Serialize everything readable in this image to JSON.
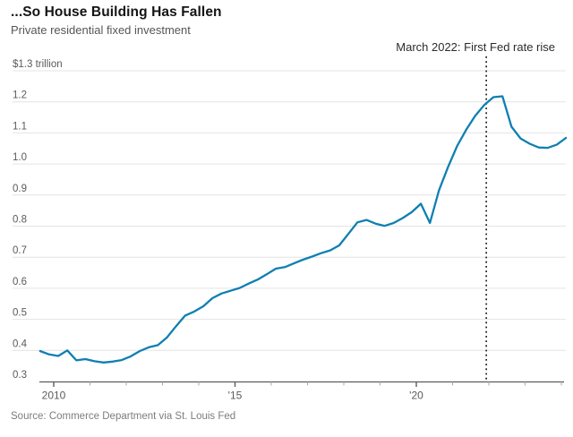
{
  "header": {
    "title": "...So House Building Has Fallen",
    "subtitle": "Private residential fixed investment"
  },
  "footer": {
    "source": "Source: Commerce Department via St. Louis Fed"
  },
  "chart_data": {
    "type": "line",
    "title": "...So House Building Has Fallen",
    "subtitle": "Private residential fixed investment",
    "unit": "trillion US dollars",
    "ylim": [
      0.3,
      1.3
    ],
    "xlim": [
      2009.5,
      2024.25
    ],
    "grid": "horizontal",
    "legend_position": "none",
    "y_ticks": [
      {
        "v": 1.3,
        "label": "$1.3 trillion"
      },
      {
        "v": 1.2,
        "label": "1.2"
      },
      {
        "v": 1.1,
        "label": "1.1"
      },
      {
        "v": 1.0,
        "label": "1.0"
      },
      {
        "v": 0.9,
        "label": "0.9"
      },
      {
        "v": 0.8,
        "label": "0.8"
      },
      {
        "v": 0.7,
        "label": "0.7"
      },
      {
        "v": 0.6,
        "label": "0.6"
      },
      {
        "v": 0.5,
        "label": "0.5"
      },
      {
        "v": 0.4,
        "label": "0.4"
      },
      {
        "v": 0.3,
        "label": "0.3"
      }
    ],
    "x_ticks": [
      {
        "year": 2010,
        "label": "2010",
        "major": true
      },
      {
        "year": 2011,
        "label": "",
        "major": false
      },
      {
        "year": 2012,
        "label": "",
        "major": false
      },
      {
        "year": 2013,
        "label": "",
        "major": false
      },
      {
        "year": 2014,
        "label": "",
        "major": false
      },
      {
        "year": 2015,
        "label": "'15",
        "major": true
      },
      {
        "year": 2016,
        "label": "",
        "major": false
      },
      {
        "year": 2017,
        "label": "",
        "major": false
      },
      {
        "year": 2018,
        "label": "",
        "major": false
      },
      {
        "year": 2019,
        "label": "",
        "major": false
      },
      {
        "year": 2020,
        "label": "'20",
        "major": true
      },
      {
        "year": 2021,
        "label": "",
        "major": false
      },
      {
        "year": 2022,
        "label": "",
        "major": false
      },
      {
        "year": 2023,
        "label": "",
        "major": false
      },
      {
        "year": 2024,
        "label": "",
        "major": false
      }
    ],
    "event": {
      "label": "March 2022: First Fed rate rise",
      "year_position": 2021.93
    },
    "series": [
      {
        "name": "Private residential fixed investment",
        "quarters": [
          "2009Q3",
          "2009Q4",
          "2010Q1",
          "2010Q2",
          "2010Q3",
          "2010Q4",
          "2011Q1",
          "2011Q2",
          "2011Q3",
          "2011Q4",
          "2012Q1",
          "2012Q2",
          "2012Q3",
          "2012Q4",
          "2013Q1",
          "2013Q2",
          "2013Q3",
          "2013Q4",
          "2014Q1",
          "2014Q2",
          "2014Q3",
          "2014Q4",
          "2015Q1",
          "2015Q2",
          "2015Q3",
          "2015Q4",
          "2016Q1",
          "2016Q2",
          "2016Q3",
          "2016Q4",
          "2017Q1",
          "2017Q2",
          "2017Q3",
          "2017Q4",
          "2018Q1",
          "2018Q2",
          "2018Q3",
          "2018Q4",
          "2019Q1",
          "2019Q2",
          "2019Q3",
          "2019Q4",
          "2020Q1",
          "2020Q2",
          "2020Q3",
          "2020Q4",
          "2021Q1",
          "2021Q2",
          "2021Q3",
          "2021Q4",
          "2022Q1",
          "2022Q2",
          "2022Q3",
          "2022Q4",
          "2023Q1",
          "2023Q2",
          "2023Q3",
          "2023Q4",
          "2024Q1"
        ],
        "values": [
          0.398,
          0.387,
          0.382,
          0.4,
          0.368,
          0.372,
          0.365,
          0.361,
          0.364,
          0.369,
          0.381,
          0.398,
          0.41,
          0.417,
          0.442,
          0.478,
          0.512,
          0.525,
          0.542,
          0.568,
          0.583,
          0.592,
          0.601,
          0.615,
          0.628,
          0.645,
          0.663,
          0.668,
          0.68,
          0.692,
          0.702,
          0.713,
          0.722,
          0.738,
          0.775,
          0.812,
          0.82,
          0.808,
          0.801,
          0.81,
          0.826,
          0.845,
          0.872,
          0.81,
          0.915,
          0.99,
          1.058,
          1.11,
          1.155,
          1.19,
          1.215,
          1.218,
          1.12,
          1.082,
          1.065,
          1.053,
          1.052,
          1.062,
          1.084
        ]
      }
    ],
    "colors": {
      "line": "#0f7fb2",
      "grid": "#e4e4e4",
      "axis": "#5c5c5c",
      "minor_tick": "#ababab",
      "event_line": "#1a1a1a"
    }
  }
}
